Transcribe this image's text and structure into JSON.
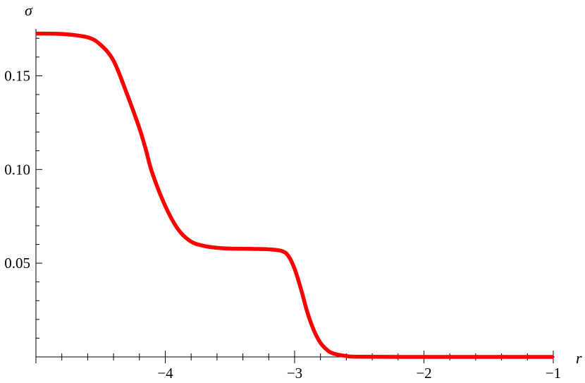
{
  "chart_data": {
    "type": "line",
    "title": "",
    "xlabel": "r",
    "ylabel": "σ",
    "xlim": [
      -5,
      -1
    ],
    "ylim": [
      0,
      0.175
    ],
    "grid": false,
    "legend": "none",
    "x_ticks": [
      {
        "value": -4,
        "label": "−4"
      },
      {
        "value": -3,
        "label": "−3"
      },
      {
        "value": -2,
        "label": "−2"
      },
      {
        "value": -1,
        "label": "−1"
      }
    ],
    "y_ticks": [
      {
        "value": 0.05,
        "label": "0.05"
      },
      {
        "value": 0.1,
        "label": "0.10"
      },
      {
        "value": 0.15,
        "label": "0.15"
      }
    ],
    "series": [
      {
        "color": "#ff0000",
        "x": [
          -5.0,
          -4.8,
          -4.6,
          -4.5,
          -4.4,
          -4.3,
          -4.2,
          -4.15,
          -4.1,
          -4.0,
          -3.9,
          -3.8,
          -3.7,
          -3.6,
          -3.5,
          -3.4,
          -3.3,
          -3.2,
          -3.1,
          -3.05,
          -3.0,
          -2.95,
          -2.9,
          -2.85,
          -2.8,
          -2.75,
          -2.7,
          -2.6,
          -2.5,
          -2.0,
          -1.5,
          -1.0
        ],
        "y": [
          0.1725,
          0.1723,
          0.1705,
          0.1665,
          0.158,
          0.141,
          0.122,
          0.1105,
          0.098,
          0.0805,
          0.068,
          0.0615,
          0.0592,
          0.0582,
          0.0578,
          0.0577,
          0.0576,
          0.0574,
          0.0565,
          0.054,
          0.047,
          0.036,
          0.0235,
          0.014,
          0.0075,
          0.0038,
          0.0018,
          0.0005,
          0.0001,
          0.0,
          0.0,
          0.0
        ]
      }
    ]
  }
}
